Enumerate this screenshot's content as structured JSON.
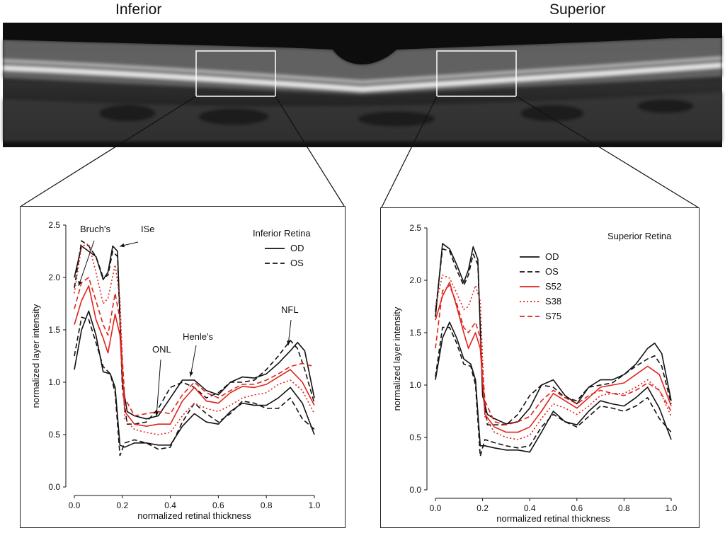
{
  "labels": {
    "left": "Inferior",
    "right": "Superior"
  },
  "colors": {
    "black": "#111111",
    "red": "#e0231c"
  },
  "chart_data": [
    {
      "type": "line",
      "title": "Inferior Retina",
      "xlabel": "normalized retinal thickness",
      "ylabel": "normalized layer intensity",
      "xlim": [
        0,
        1
      ],
      "ylim": [
        0,
        2.5
      ],
      "xticks": [
        "0.0",
        "0.2",
        "0.4",
        "0.6",
        "0.8",
        "1.0"
      ],
      "yticks": [
        "0.0",
        "0.5",
        "1.0",
        "1.5",
        "2.0",
        "2.5"
      ],
      "legend": "top-right",
      "annotations": [
        "Bruch's",
        "ISe",
        "ONL",
        "Henle's",
        "NFL"
      ],
      "series": [
        {
          "name": "OD",
          "color": "black",
          "dash": "solid",
          "legend": true,
          "x": [
            0,
            0.03,
            0.06,
            0.09,
            0.12,
            0.14,
            0.16,
            0.18,
            0.2,
            0.22,
            0.25,
            0.3,
            0.35,
            0.4,
            0.45,
            0.5,
            0.55,
            0.6,
            0.65,
            0.7,
            0.75,
            0.8,
            0.85,
            0.9,
            0.93,
            0.96,
            1.0
          ],
          "y": [
            2.0,
            2.3,
            2.25,
            2.2,
            1.98,
            2.05,
            2.3,
            2.25,
            1.0,
            0.72,
            0.68,
            0.65,
            0.68,
            0.85,
            1.02,
            1.02,
            0.92,
            0.88,
            1.0,
            1.05,
            1.04,
            1.08,
            1.18,
            1.3,
            1.38,
            1.3,
            0.85
          ]
        },
        {
          "name": "OD",
          "color": "black",
          "dash": "solid",
          "legend": false,
          "x": [
            0,
            0.03,
            0.06,
            0.09,
            0.12,
            0.15,
            0.17,
            0.19,
            0.21,
            0.25,
            0.3,
            0.35,
            0.4,
            0.45,
            0.5,
            0.55,
            0.6,
            0.65,
            0.7,
            0.75,
            0.8,
            0.85,
            0.9,
            0.95,
            1.0
          ],
          "y": [
            1.12,
            1.5,
            1.68,
            1.45,
            1.1,
            1.08,
            0.95,
            0.4,
            0.38,
            0.42,
            0.42,
            0.4,
            0.4,
            0.58,
            0.7,
            0.62,
            0.6,
            0.72,
            0.8,
            0.78,
            0.78,
            0.85,
            0.95,
            0.8,
            0.5
          ]
        },
        {
          "name": "OS",
          "color": "black",
          "dash": "dashed",
          "legend": true,
          "x": [
            0,
            0.03,
            0.06,
            0.09,
            0.12,
            0.14,
            0.16,
            0.18,
            0.2,
            0.22,
            0.25,
            0.3,
            0.35,
            0.4,
            0.45,
            0.5,
            0.55,
            0.6,
            0.65,
            0.7,
            0.75,
            0.8,
            0.85,
            0.9,
            0.93,
            0.96,
            1.0
          ],
          "y": [
            1.9,
            2.35,
            2.3,
            2.2,
            2.0,
            2.02,
            2.25,
            2.2,
            0.95,
            0.6,
            0.6,
            0.62,
            0.75,
            0.95,
            1.0,
            0.95,
            0.85,
            0.9,
            1.0,
            1.0,
            1.02,
            1.12,
            1.25,
            1.4,
            1.32,
            1.12,
            0.8
          ]
        },
        {
          "name": "OS",
          "color": "black",
          "dash": "dashed",
          "legend": false,
          "x": [
            0,
            0.03,
            0.06,
            0.09,
            0.12,
            0.15,
            0.17,
            0.19,
            0.21,
            0.25,
            0.3,
            0.35,
            0.4,
            0.45,
            0.5,
            0.55,
            0.6,
            0.65,
            0.7,
            0.75,
            0.8,
            0.85,
            0.9,
            0.95,
            1.0
          ],
          "y": [
            1.25,
            1.62,
            1.6,
            1.38,
            1.15,
            1.08,
            0.9,
            0.3,
            0.42,
            0.45,
            0.42,
            0.36,
            0.38,
            0.62,
            0.8,
            0.7,
            0.62,
            0.7,
            0.82,
            0.8,
            0.75,
            0.75,
            0.85,
            0.65,
            0.55
          ]
        },
        {
          "name": "",
          "color": "red",
          "dash": "solid",
          "legend": false,
          "x": [
            0,
            0.03,
            0.06,
            0.09,
            0.12,
            0.14,
            0.17,
            0.19,
            0.21,
            0.25,
            0.3,
            0.35,
            0.4,
            0.45,
            0.5,
            0.55,
            0.6,
            0.65,
            0.7,
            0.75,
            0.8,
            0.85,
            0.9,
            0.95,
            1.0
          ],
          "y": [
            1.55,
            1.78,
            1.92,
            1.6,
            1.42,
            1.28,
            1.65,
            1.45,
            0.72,
            0.6,
            0.58,
            0.6,
            0.6,
            0.82,
            0.95,
            0.82,
            0.8,
            0.9,
            0.96,
            0.95,
            0.98,
            1.05,
            1.12,
            1.0,
            0.78
          ]
        },
        {
          "name": "",
          "color": "red",
          "dash": "dotted",
          "legend": false,
          "x": [
            0,
            0.03,
            0.06,
            0.09,
            0.12,
            0.14,
            0.17,
            0.19,
            0.21,
            0.25,
            0.3,
            0.35,
            0.4,
            0.45,
            0.5,
            0.55,
            0.6,
            0.65,
            0.7,
            0.75,
            0.8,
            0.85,
            0.9,
            0.95,
            1.0
          ],
          "y": [
            1.85,
            2.3,
            2.32,
            2.05,
            1.75,
            1.8,
            2.12,
            1.8,
            0.65,
            0.55,
            0.52,
            0.5,
            0.52,
            0.68,
            0.8,
            0.75,
            0.72,
            0.78,
            0.85,
            0.88,
            0.9,
            0.98,
            1.02,
            0.92,
            0.7
          ]
        },
        {
          "name": "",
          "color": "red",
          "dash": "dashed",
          "legend": false,
          "x": [
            0,
            0.03,
            0.06,
            0.09,
            0.12,
            0.14,
            0.17,
            0.19,
            0.21,
            0.25,
            0.3,
            0.35,
            0.4,
            0.45,
            0.5,
            0.55,
            0.6,
            0.65,
            0.7,
            0.75,
            0.8,
            0.85,
            0.9,
            0.95,
            1.0
          ],
          "y": [
            1.7,
            1.95,
            2.0,
            1.78,
            1.55,
            1.45,
            1.85,
            1.6,
            0.85,
            0.68,
            0.7,
            0.72,
            0.7,
            0.88,
            1.0,
            0.9,
            0.85,
            0.92,
            0.98,
            0.98,
            1.02,
            1.08,
            1.15,
            1.18,
            1.15
          ]
        }
      ]
    },
    {
      "type": "line",
      "title": "Superior Retina",
      "xlabel": "normalized retinal thickness",
      "ylabel": "normalized layer intensity",
      "xlim": [
        0,
        1
      ],
      "ylim": [
        0,
        2.5
      ],
      "xticks": [
        "0.0",
        "0.2",
        "0.4",
        "0.6",
        "0.8",
        "1.0"
      ],
      "yticks": [
        "0.0",
        "0.5",
        "1.0",
        "1.5",
        "2.0",
        "2.5"
      ],
      "legend": "top-center",
      "annotations": [],
      "series": [
        {
          "name": "OD",
          "color": "black",
          "dash": "solid",
          "legend": true,
          "x": [
            0,
            0.03,
            0.06,
            0.09,
            0.12,
            0.14,
            0.16,
            0.18,
            0.2,
            0.22,
            0.25,
            0.3,
            0.35,
            0.4,
            0.45,
            0.5,
            0.55,
            0.6,
            0.65,
            0.7,
            0.75,
            0.8,
            0.85,
            0.9,
            0.93,
            0.96,
            1.0
          ],
          "y": [
            1.65,
            2.35,
            2.3,
            2.15,
            1.98,
            2.1,
            2.32,
            2.2,
            0.9,
            0.72,
            0.68,
            0.63,
            0.65,
            0.78,
            1.0,
            1.05,
            0.9,
            0.82,
            0.98,
            1.05,
            1.05,
            1.1,
            1.2,
            1.35,
            1.4,
            1.3,
            0.85
          ]
        },
        {
          "name": "OD",
          "color": "black",
          "dash": "solid",
          "legend": false,
          "x": [
            0,
            0.03,
            0.06,
            0.09,
            0.12,
            0.15,
            0.17,
            0.19,
            0.21,
            0.25,
            0.3,
            0.35,
            0.4,
            0.45,
            0.5,
            0.55,
            0.6,
            0.65,
            0.7,
            0.75,
            0.8,
            0.85,
            0.9,
            0.95,
            1.0
          ],
          "y": [
            1.05,
            1.45,
            1.6,
            1.45,
            1.25,
            1.2,
            1.05,
            0.42,
            0.42,
            0.4,
            0.38,
            0.38,
            0.36,
            0.55,
            0.75,
            0.65,
            0.62,
            0.75,
            0.85,
            0.82,
            0.8,
            0.88,
            0.98,
            0.78,
            0.48
          ]
        },
        {
          "name": "OS",
          "color": "black",
          "dash": "dashed",
          "legend": true,
          "x": [
            0,
            0.03,
            0.06,
            0.09,
            0.12,
            0.14,
            0.16,
            0.18,
            0.2,
            0.22,
            0.25,
            0.3,
            0.35,
            0.4,
            0.45,
            0.5,
            0.55,
            0.6,
            0.65,
            0.7,
            0.75,
            0.8,
            0.85,
            0.9,
            0.93,
            0.96,
            1.0
          ],
          "y": [
            1.7,
            2.3,
            2.28,
            2.1,
            1.95,
            2.05,
            2.25,
            2.15,
            1.0,
            0.62,
            0.62,
            0.62,
            0.72,
            0.9,
            1.0,
            0.98,
            0.88,
            0.85,
            0.98,
            1.0,
            1.02,
            1.1,
            1.18,
            1.25,
            1.28,
            1.18,
            0.82
          ]
        },
        {
          "name": "OS",
          "color": "black",
          "dash": "dashed",
          "legend": false,
          "x": [
            0,
            0.03,
            0.06,
            0.09,
            0.12,
            0.15,
            0.17,
            0.19,
            0.21,
            0.25,
            0.3,
            0.35,
            0.4,
            0.45,
            0.5,
            0.55,
            0.6,
            0.65,
            0.7,
            0.75,
            0.8,
            0.85,
            0.9,
            0.95,
            1.0
          ],
          "y": [
            1.08,
            1.55,
            1.55,
            1.4,
            1.2,
            1.18,
            1.0,
            0.32,
            0.48,
            0.45,
            0.42,
            0.4,
            0.42,
            0.6,
            0.72,
            0.65,
            0.6,
            0.7,
            0.8,
            0.78,
            0.75,
            0.8,
            0.88,
            0.68,
            0.55
          ]
        },
        {
          "name": "S52",
          "color": "red",
          "dash": "solid",
          "legend": true,
          "x": [
            0,
            0.03,
            0.06,
            0.09,
            0.12,
            0.14,
            0.17,
            0.19,
            0.21,
            0.25,
            0.3,
            0.35,
            0.4,
            0.45,
            0.5,
            0.55,
            0.6,
            0.65,
            0.7,
            0.75,
            0.8,
            0.85,
            0.9,
            0.95,
            1.0
          ],
          "y": [
            1.62,
            1.85,
            1.98,
            1.75,
            1.5,
            1.35,
            1.5,
            1.35,
            0.72,
            0.6,
            0.55,
            0.55,
            0.6,
            0.75,
            0.92,
            0.85,
            0.78,
            0.88,
            0.98,
            1.0,
            1.02,
            1.1,
            1.18,
            1.1,
            0.8
          ]
        },
        {
          "name": "S38",
          "color": "red",
          "dash": "dotted",
          "legend": true,
          "x": [
            0,
            0.03,
            0.06,
            0.09,
            0.12,
            0.14,
            0.17,
            0.19,
            0.21,
            0.25,
            0.3,
            0.35,
            0.4,
            0.45,
            0.5,
            0.55,
            0.6,
            0.65,
            0.7,
            0.75,
            0.8,
            0.85,
            0.9,
            0.95,
            1.0
          ],
          "y": [
            1.75,
            2.05,
            2.02,
            1.88,
            1.72,
            1.75,
            1.95,
            1.8,
            0.7,
            0.55,
            0.5,
            0.48,
            0.52,
            0.68,
            0.82,
            0.78,
            0.72,
            0.8,
            0.9,
            0.92,
            0.92,
            0.98,
            1.05,
            0.95,
            0.7
          ]
        },
        {
          "name": "S75",
          "color": "red",
          "dash": "dashed",
          "legend": true,
          "x": [
            0,
            0.03,
            0.06,
            0.09,
            0.12,
            0.14,
            0.17,
            0.19,
            0.21,
            0.25,
            0.3,
            0.35,
            0.4,
            0.45,
            0.5,
            0.55,
            0.6,
            0.65,
            0.7,
            0.75,
            0.8,
            0.85,
            0.9,
            0.95,
            1.0
          ],
          "y": [
            1.35,
            1.9,
            1.95,
            1.78,
            1.55,
            1.5,
            1.6,
            1.45,
            0.85,
            0.65,
            0.62,
            0.65,
            0.7,
            0.85,
            0.95,
            0.88,
            0.82,
            0.9,
            0.95,
            0.92,
            0.9,
            0.95,
            1.02,
            0.95,
            0.75
          ]
        }
      ]
    }
  ]
}
